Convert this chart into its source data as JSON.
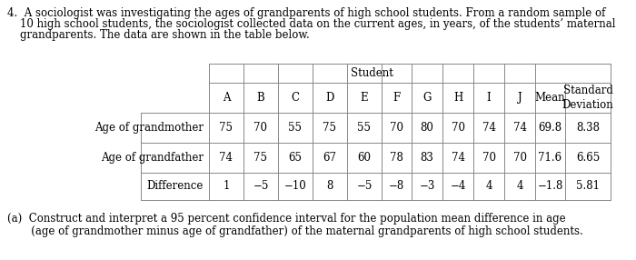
{
  "problem_number": "4.",
  "intro_line1": "A sociologist was investigating the ages of grandparents of high school students. From a random sample of",
  "intro_line2": "10 high school students, the sociologist collected data on the current ages, in years, of the students’ maternal",
  "intro_line3": "grandparents. The data are shown in the table below.",
  "section_header": "Student",
  "col_headers": [
    "A",
    "B",
    "C",
    "D",
    "E",
    "F",
    "G",
    "H",
    "I",
    "J",
    "Mean",
    "Standard\nDeviation"
  ],
  "row_labels": [
    "Age of grandmother",
    "Age of grandfather",
    "Difference"
  ],
  "row1": [
    "75",
    "70",
    "55",
    "75",
    "55",
    "70",
    "80",
    "70",
    "74",
    "74",
    "69.8",
    "8.38"
  ],
  "row2": [
    "74",
    "75",
    "65",
    "67",
    "60",
    "78",
    "83",
    "74",
    "70",
    "70",
    "71.6",
    "6.65"
  ],
  "row3": [
    "1",
    "−5",
    "−10",
    "8",
    "−5",
    "−8",
    "−3",
    "−4",
    "4",
    "4",
    "−1.8",
    "5.81"
  ],
  "part_a_line1": "(a)  Construct and interpret a 95 percent confidence interval for the population mean difference in age",
  "part_a_line2": "       (age of grandmother minus age of grandfather) of the maternal grandparents of high school students.",
  "font_size": 8.5,
  "text_color": "#000000",
  "bg_color": "#ffffff",
  "line_color": "#888888"
}
